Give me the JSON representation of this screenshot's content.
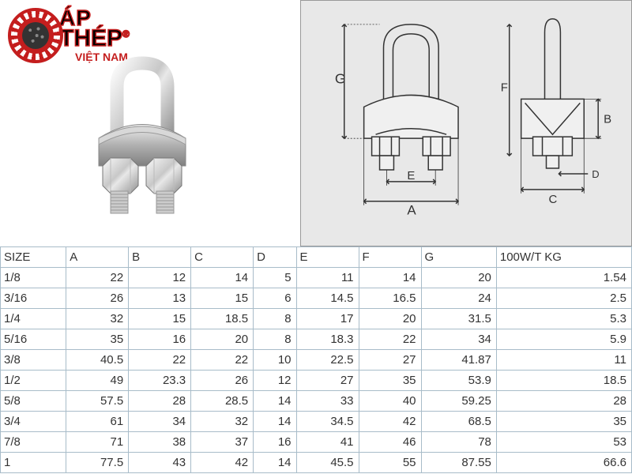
{
  "logo": {
    "line1": "ÁP",
    "line2": "THÉP",
    "line3": "VIỆT NAM",
    "reg": "®"
  },
  "table": {
    "columns": [
      "SIZE",
      "A",
      "B",
      "C",
      "D",
      "E",
      "F",
      "G",
      "100W/T KG"
    ],
    "rows": [
      [
        "1/8",
        "22",
        "12",
        "14",
        "5",
        "11",
        "14",
        "20",
        "1.54"
      ],
      [
        "3/16",
        "26",
        "13",
        "15",
        "6",
        "14.5",
        "16.5",
        "24",
        "2.5"
      ],
      [
        "1/4",
        "32",
        "15",
        "18.5",
        "8",
        "17",
        "20",
        "31.5",
        "5.3"
      ],
      [
        "5/16",
        "35",
        "16",
        "20",
        "8",
        "18.3",
        "22",
        "34",
        "5.9"
      ],
      [
        "3/8",
        "40.5",
        "22",
        "22",
        "10",
        "22.5",
        "27",
        "41.87",
        "11"
      ],
      [
        "1/2",
        "49",
        "23.3",
        "26",
        "12",
        "27",
        "35",
        "53.9",
        "18.5"
      ],
      [
        "5/8",
        "57.5",
        "28",
        "28.5",
        "14",
        "33",
        "40",
        "59.25",
        "28"
      ],
      [
        "3/4",
        "61",
        "34",
        "32",
        "14",
        "34.5",
        "42",
        "68.5",
        "35"
      ],
      [
        "7/8",
        "71",
        "38",
        "37",
        "16",
        "41",
        "46",
        "78",
        "53"
      ],
      [
        "1",
        "77.5",
        "43",
        "42",
        "14",
        "45.5",
        "55",
        "87.55",
        "66.6"
      ]
    ],
    "border_color": "#a8bcc9",
    "header_bg": "#ffffff",
    "font_size": 15
  },
  "diagram_labels": {
    "G": "G",
    "E": "E",
    "A": "A",
    "F": "F",
    "B": "B",
    "C": "C",
    "D": "D"
  }
}
